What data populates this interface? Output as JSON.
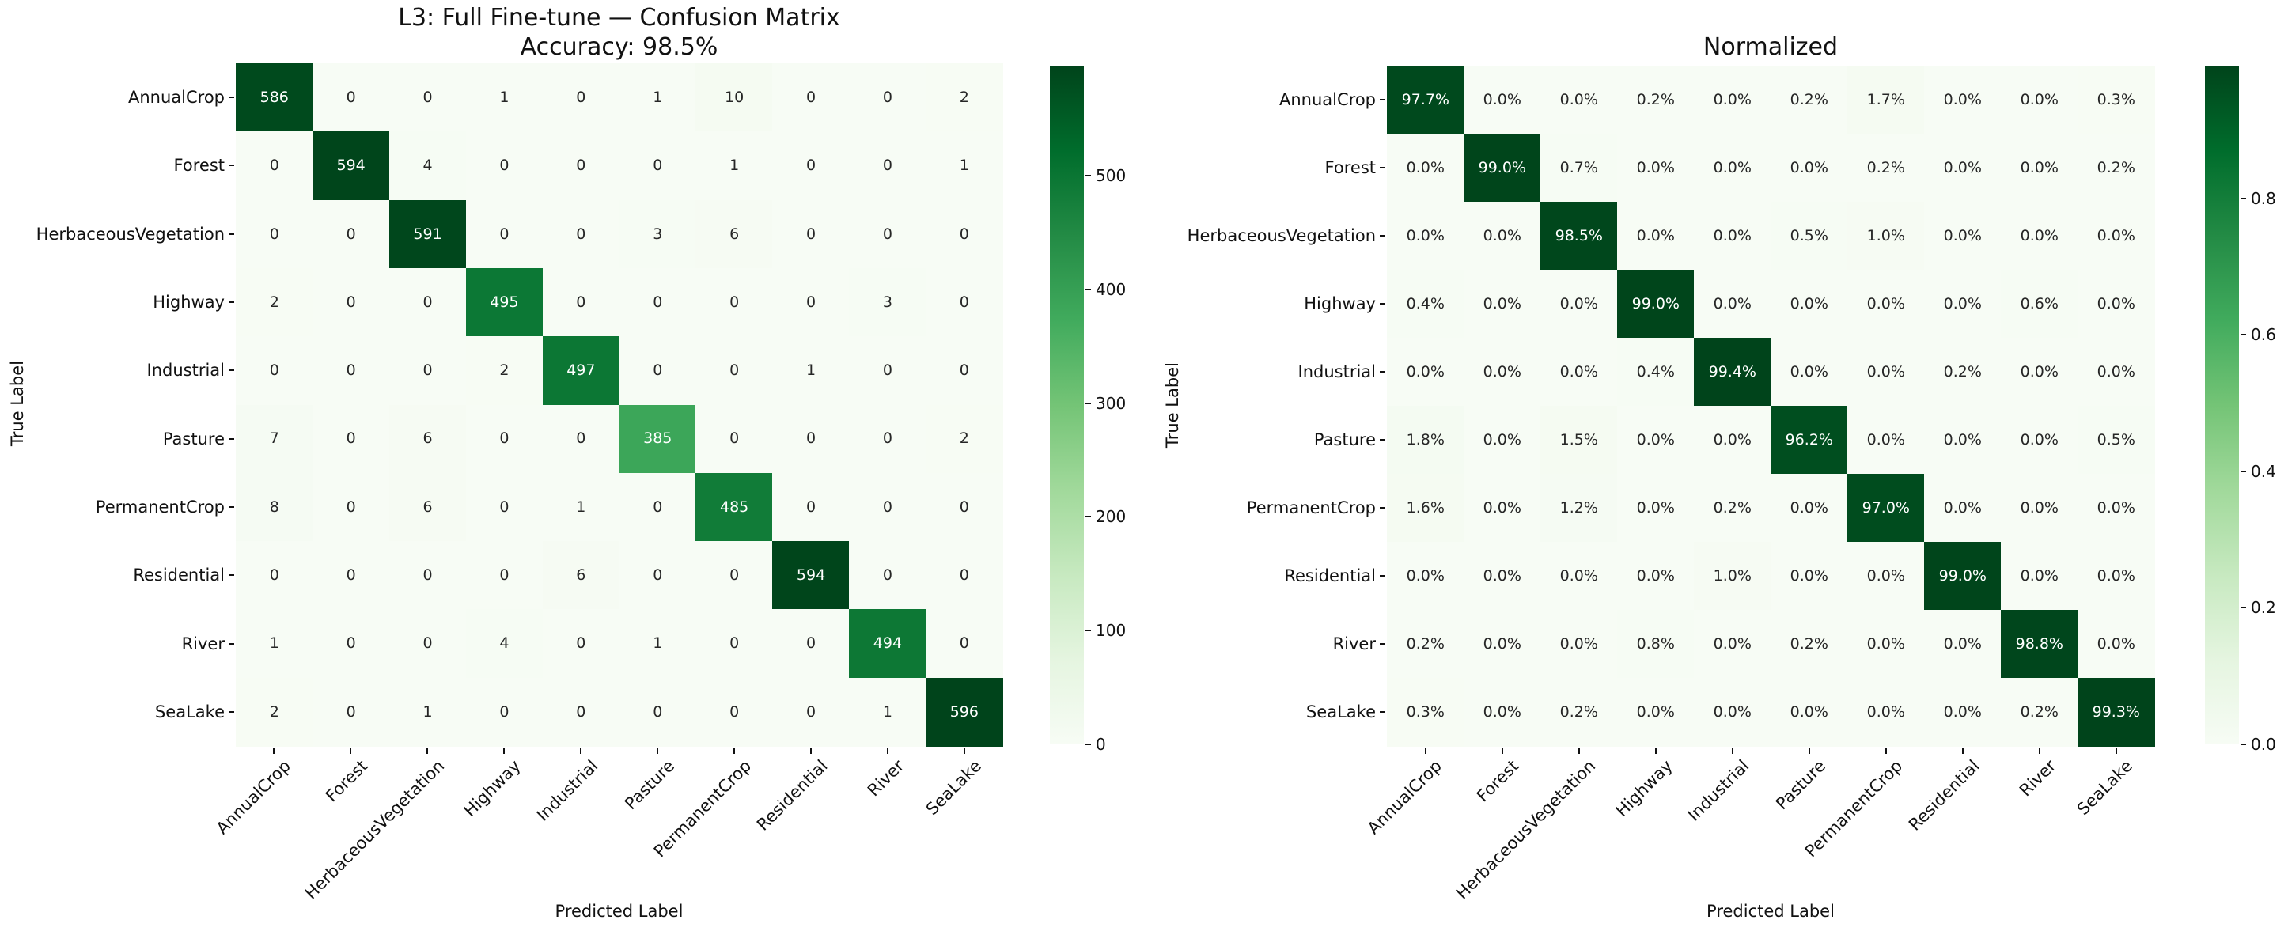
{
  "figure": {
    "background": "#ffffff",
    "text_color": "#111111",
    "annot_dark_color": "#262626",
    "annot_light_color": "#ffffff"
  },
  "classes": [
    "AnnualCrop",
    "Forest",
    "HerbaceousVegetation",
    "Highway",
    "Industrial",
    "Pasture",
    "PermanentCrop",
    "Residential",
    "River",
    "SeaLake"
  ],
  "chart_data": [
    {
      "type": "heatmap",
      "title": "L3: Full Fine-tune — Confusion Matrix",
      "subtitle": "Accuracy: 98.5%",
      "xlabel": "Predicted Label",
      "ylabel": "True Label",
      "colormap": "Greens",
      "categories": [
        "AnnualCrop",
        "Forest",
        "HerbaceousVegetation",
        "Highway",
        "Industrial",
        "Pasture",
        "PermanentCrop",
        "Residential",
        "River",
        "SeaLake"
      ],
      "matrix": [
        [
          586,
          0,
          0,
          1,
          0,
          1,
          10,
          0,
          0,
          2
        ],
        [
          0,
          594,
          4,
          0,
          0,
          0,
          1,
          0,
          0,
          1
        ],
        [
          0,
          0,
          591,
          0,
          0,
          3,
          6,
          0,
          0,
          0
        ],
        [
          2,
          0,
          0,
          495,
          0,
          0,
          0,
          0,
          3,
          0
        ],
        [
          0,
          0,
          0,
          2,
          497,
          0,
          0,
          1,
          0,
          0
        ],
        [
          7,
          0,
          6,
          0,
          0,
          385,
          0,
          0,
          0,
          2
        ],
        [
          8,
          0,
          6,
          0,
          1,
          0,
          485,
          0,
          0,
          0
        ],
        [
          0,
          0,
          0,
          0,
          6,
          0,
          0,
          594,
          0,
          0
        ],
        [
          1,
          0,
          0,
          4,
          0,
          1,
          0,
          0,
          494,
          0
        ],
        [
          2,
          0,
          1,
          0,
          0,
          0,
          0,
          0,
          1,
          596
        ]
      ],
      "value_format": "int",
      "vmin": 0,
      "vmax": 596,
      "colorbar": {
        "tick_values": [
          0,
          100,
          200,
          300,
          400,
          500
        ],
        "tick_labels": [
          "0",
          "100",
          "200",
          "300",
          "400",
          "500"
        ]
      }
    },
    {
      "type": "heatmap",
      "title": "Normalized",
      "xlabel": "Predicted Label",
      "ylabel": "True Label",
      "colormap": "Greens",
      "categories": [
        "AnnualCrop",
        "Forest",
        "HerbaceousVegetation",
        "Highway",
        "Industrial",
        "Pasture",
        "PermanentCrop",
        "Residential",
        "River",
        "SeaLake"
      ],
      "matrix": [
        [
          97.7,
          0.0,
          0.0,
          0.2,
          0.0,
          0.2,
          1.7,
          0.0,
          0.0,
          0.3
        ],
        [
          0.0,
          99.0,
          0.7,
          0.0,
          0.0,
          0.0,
          0.2,
          0.0,
          0.0,
          0.2
        ],
        [
          0.0,
          0.0,
          98.5,
          0.0,
          0.0,
          0.5,
          1.0,
          0.0,
          0.0,
          0.0
        ],
        [
          0.4,
          0.0,
          0.0,
          99.0,
          0.0,
          0.0,
          0.0,
          0.0,
          0.6,
          0.0
        ],
        [
          0.0,
          0.0,
          0.0,
          0.4,
          99.4,
          0.0,
          0.0,
          0.2,
          0.0,
          0.0
        ],
        [
          1.8,
          0.0,
          1.5,
          0.0,
          0.0,
          96.2,
          0.0,
          0.0,
          0.0,
          0.5
        ],
        [
          1.6,
          0.0,
          1.2,
          0.0,
          0.2,
          0.0,
          97.0,
          0.0,
          0.0,
          0.0
        ],
        [
          0.0,
          0.0,
          0.0,
          0.0,
          1.0,
          0.0,
          0.0,
          99.0,
          0.0,
          0.0
        ],
        [
          0.2,
          0.0,
          0.0,
          0.8,
          0.0,
          0.2,
          0.0,
          0.0,
          98.8,
          0.0
        ],
        [
          0.3,
          0.0,
          0.2,
          0.0,
          0.0,
          0.0,
          0.0,
          0.0,
          0.2,
          99.3
        ]
      ],
      "value_format": "percent",
      "vmin": 0,
      "vmax": 99.33,
      "colorbar": {
        "tick_values": [
          0,
          20,
          40,
          60,
          80
        ],
        "tick_labels": [
          "0.0",
          "0.2",
          "0.4",
          "0.6",
          "0.8"
        ]
      }
    }
  ]
}
